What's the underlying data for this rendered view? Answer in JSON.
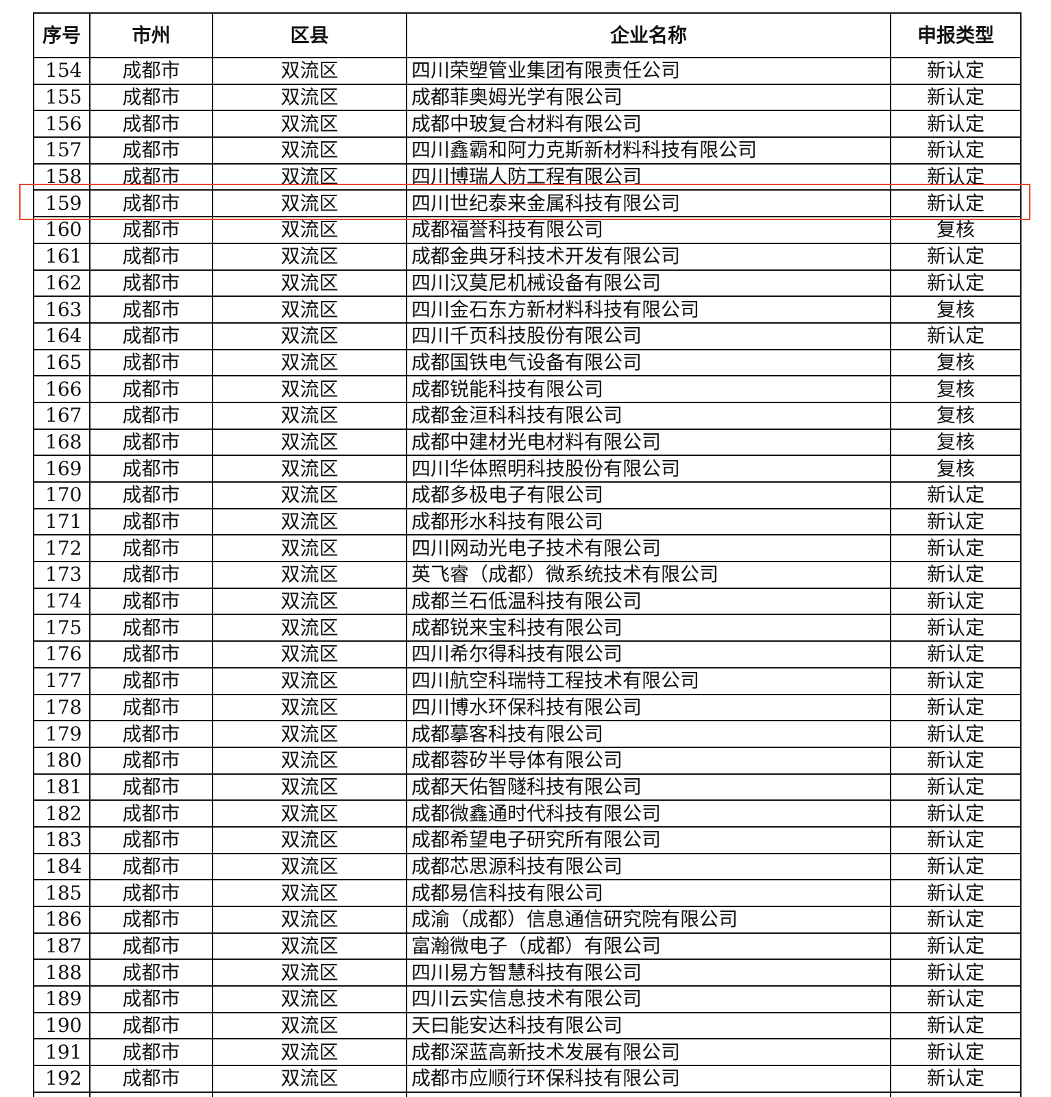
{
  "table": {
    "header": [
      "序号",
      "市州",
      "区县",
      "企业名称",
      "申报类型"
    ],
    "rows": [
      [
        154,
        "成都市",
        "双流区",
        "四川荣塑管业集团有限责任公司",
        "新认定"
      ],
      [
        155,
        "成都市",
        "双流区",
        "成都菲奥姆光学有限公司",
        "新认定"
      ],
      [
        156,
        "成都市",
        "双流区",
        "成都中玻复合材料有限公司",
        "新认定"
      ],
      [
        157,
        "成都市",
        "双流区",
        "四川鑫霸和阿力克斯新材料科技有限公司",
        "新认定"
      ],
      [
        158,
        "成都市",
        "双流区",
        "四川博瑞人防工程有限公司",
        "新认定"
      ],
      [
        159,
        "成都市",
        "双流区",
        "四川世纪泰来金属科技有限公司",
        "新认定"
      ],
      [
        160,
        "成都市",
        "双流区",
        "成都福誉科技有限公司",
        "复核"
      ],
      [
        161,
        "成都市",
        "双流区",
        "成都金典牙科技术开发有限公司",
        "新认定"
      ],
      [
        162,
        "成都市",
        "双流区",
        "四川汉莫尼机械设备有限公司",
        "新认定"
      ],
      [
        163,
        "成都市",
        "双流区",
        "四川金石东方新材料科技有限公司",
        "复核"
      ],
      [
        164,
        "成都市",
        "双流区",
        "四川千页科技股份有限公司",
        "新认定"
      ],
      [
        165,
        "成都市",
        "双流区",
        "成都国铁电气设备有限公司",
        "复核"
      ],
      [
        166,
        "成都市",
        "双流区",
        "成都锐能科技有限公司",
        "复核"
      ],
      [
        167,
        "成都市",
        "双流区",
        "成都金洹科科技有限公司",
        "复核"
      ],
      [
        168,
        "成都市",
        "双流区",
        "成都中建材光电材料有限公司",
        "复核"
      ],
      [
        169,
        "成都市",
        "双流区",
        "四川华体照明科技股份有限公司",
        "复核"
      ],
      [
        170,
        "成都市",
        "双流区",
        "成都多极电子有限公司",
        "新认定"
      ],
      [
        171,
        "成都市",
        "双流区",
        "成都形水科技有限公司",
        "新认定"
      ],
      [
        172,
        "成都市",
        "双流区",
        "四川网动光电子技术有限公司",
        "新认定"
      ],
      [
        173,
        "成都市",
        "双流区",
        "英飞睿（成都）微系统技术有限公司",
        "新认定"
      ],
      [
        174,
        "成都市",
        "双流区",
        "成都兰石低温科技有限公司",
        "新认定"
      ],
      [
        175,
        "成都市",
        "双流区",
        "成都锐来宝科技有限公司",
        "新认定"
      ],
      [
        176,
        "成都市",
        "双流区",
        "四川希尔得科技有限公司",
        "新认定"
      ],
      [
        177,
        "成都市",
        "双流区",
        "四川航空科瑞特工程技术有限公司",
        "新认定"
      ],
      [
        178,
        "成都市",
        "双流区",
        "四川博水环保科技有限公司",
        "新认定"
      ],
      [
        179,
        "成都市",
        "双流区",
        "成都摹客科技有限公司",
        "新认定"
      ],
      [
        180,
        "成都市",
        "双流区",
        "成都蓉矽半导体有限公司",
        "新认定"
      ],
      [
        181,
        "成都市",
        "双流区",
        "成都天佑智隧科技有限公司",
        "新认定"
      ],
      [
        182,
        "成都市",
        "双流区",
        "成都微鑫通时代科技有限公司",
        "新认定"
      ],
      [
        183,
        "成都市",
        "双流区",
        "成都希望电子研究所有限公司",
        "新认定"
      ],
      [
        184,
        "成都市",
        "双流区",
        "成都芯思源科技有限公司",
        "新认定"
      ],
      [
        185,
        "成都市",
        "双流区",
        "成都易信科技有限公司",
        "新认定"
      ],
      [
        186,
        "成都市",
        "双流区",
        "成渝（成都）信息通信研究院有限公司",
        "新认定"
      ],
      [
        187,
        "成都市",
        "双流区",
        "富瀚微电子（成都）有限公司",
        "新认定"
      ],
      [
        188,
        "成都市",
        "双流区",
        "四川易方智慧科技有限公司",
        "新认定"
      ],
      [
        189,
        "成都市",
        "双流区",
        "四川云实信息技术有限公司",
        "新认定"
      ],
      [
        190,
        "成都市",
        "双流区",
        "天曰能安达科技有限公司",
        "新认定"
      ],
      [
        191,
        "成都市",
        "双流区",
        "成都深蓝高新技术发展有限公司",
        "新认定"
      ],
      [
        192,
        "成都市",
        "双流区",
        "成都市应顺行环保科技有限公司",
        "新认定"
      ]
    ]
  }
}
